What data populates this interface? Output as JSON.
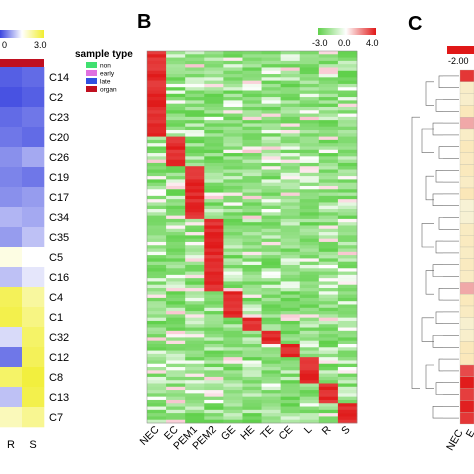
{
  "panels": {
    "b_label": "B",
    "c_label": "C"
  },
  "panel_a": {
    "scale_min_label": "0",
    "scale_max_label": "3.0",
    "legend_title": "sample type",
    "legend_items": [
      {
        "label": "non",
        "color": "#40e070"
      },
      {
        "label": "early",
        "color": "#e070e0"
      },
      {
        "label": "late",
        "color": "#3050e0"
      },
      {
        "label": "organ",
        "color": "#c01020"
      }
    ]
  },
  "panel_b": {
    "scale_min_label": "-3.0",
    "scale_mid_label": "0.0",
    "scale_max_label": "4.0"
  },
  "panel_c": {
    "scale_min_label": "-2.00",
    "columns": [
      "NEC",
      "E"
    ],
    "marker_color": "#c01020"
  },
  "colors": {
    "blue": "#3b46e0",
    "light_blue": "#b8bcf2",
    "yellow": "#f1ee30",
    "green": "#5fd04a",
    "red": "#e01818",
    "pale": "#f6f3d8"
  },
  "chart_data": [
    {
      "type": "heatmap",
      "title": "",
      "columns": [
        "R",
        "S"
      ],
      "rows": [
        "C14",
        "C2",
        "C23",
        "C20",
        "C26",
        "C19",
        "C17",
        "C34",
        "C35",
        "C5",
        "C16",
        "C4",
        "C1",
        "C32",
        "C12",
        "C8",
        "C13",
        "C7"
      ],
      "color_scale": {
        "min": 0,
        "max": 3.0
      },
      "values": [
        [
          0.2,
          0.3
        ],
        [
          0.1,
          0.2
        ],
        [
          0.3,
          0.4
        ],
        [
          0.4,
          0.3
        ],
        [
          0.6,
          0.8
        ],
        [
          0.5,
          0.4
        ],
        [
          0.6,
          0.7
        ],
        [
          0.9,
          0.8
        ],
        [
          0.7,
          1.0
        ],
        [
          1.7,
          1.5
        ],
        [
          1.0,
          1.3
        ],
        [
          2.7,
          2.2
        ],
        [
          2.8,
          2.4
        ],
        [
          1.2,
          2.6
        ],
        [
          0.4,
          2.7
        ],
        [
          2.6,
          2.9
        ],
        [
          1.0,
          2.8
        ],
        [
          2.0,
          2.3
        ]
      ]
    },
    {
      "type": "heatmap",
      "title": "",
      "columns": [
        "NEC",
        "EC",
        "PEM1",
        "PEM2",
        "GE",
        "HE",
        "TE",
        "CE",
        "L",
        "R",
        "S"
      ],
      "color_scale": {
        "min": -3.0,
        "mid": 0.0,
        "max": 4.0
      },
      "block_sizes": [
        26,
        9,
        16,
        22,
        8,
        4,
        4,
        4,
        8,
        6,
        6
      ]
    },
    {
      "type": "heatmap",
      "title": "",
      "columns": [
        "NEC",
        "E"
      ],
      "color_scale": {
        "min": -2.0
      },
      "rows": 30
    }
  ]
}
